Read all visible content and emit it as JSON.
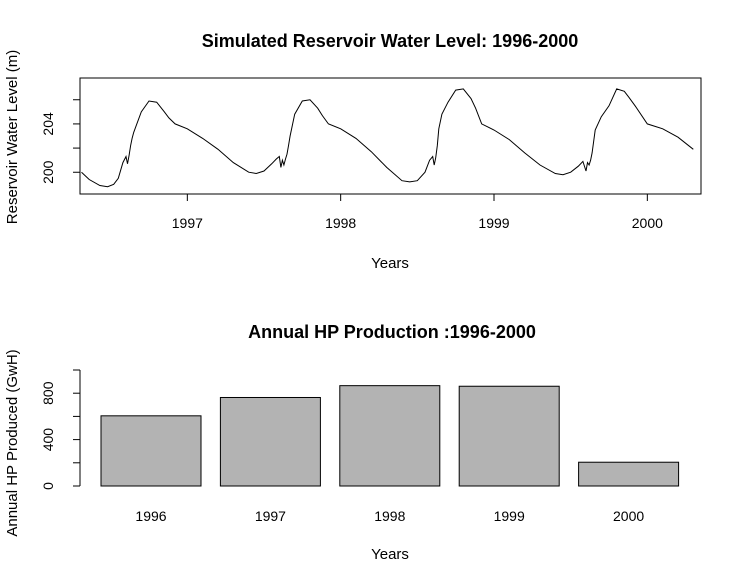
{
  "chart_data": [
    {
      "type": "line",
      "title": "Simulated Reservoir Water Level: 1996-2000",
      "xlabel": "Years",
      "ylabel": "Reservoir Water Level (m)",
      "xlim": [
        1996.3,
        2000.35
      ],
      "ylim": [
        198.2,
        207.8
      ],
      "x_ticks": [
        1997,
        1998,
        1999,
        2000
      ],
      "x_tick_labels": [
        "1997",
        "1998",
        "1999",
        "2000"
      ],
      "y_ticks": [
        200,
        202,
        204,
        206
      ],
      "y_tick_labels": [
        "200",
        "",
        "204",
        ""
      ],
      "series": [
        {
          "x": [
            1996.31,
            1996.36,
            1996.43,
            1996.48,
            1996.52,
            1996.55,
            1996.58,
            1996.6,
            1996.61,
            1996.62,
            1996.63,
            1996.64,
            1996.65,
            1996.7,
            1996.75,
            1996.8,
            1996.85,
            1996.88,
            1996.92,
            1997.0,
            1997.1,
            1997.2,
            1997.3,
            1997.4,
            1997.45,
            1997.5,
            1997.55,
            1997.58,
            1997.6,
            1997.61,
            1997.62,
            1997.63,
            1997.64,
            1997.65,
            1997.66,
            1997.67,
            1997.7,
            1997.75,
            1997.8,
            1997.85,
            1997.88,
            1997.92,
            1998.0,
            1998.1,
            1998.2,
            1998.3,
            1998.4,
            1998.45,
            1998.5,
            1998.55,
            1998.58,
            1998.6,
            1998.61,
            1998.62,
            1998.63,
            1998.64,
            1998.66,
            1998.7,
            1998.75,
            1998.8,
            1998.85,
            1998.88,
            1998.92,
            1999.0,
            1999.1,
            1999.2,
            1999.3,
            1999.4,
            1999.45,
            1999.5,
            1999.55,
            1999.58,
            1999.6,
            1999.61,
            1999.62,
            1999.63,
            1999.64,
            1999.66,
            1999.7,
            1999.75,
            1999.8,
            1999.85,
            1999.88,
            1999.92,
            2000.0,
            2000.1,
            2000.2,
            2000.3
          ],
          "y": [
            200.0,
            199.4,
            198.9,
            198.8,
            199.0,
            199.5,
            200.8,
            201.3,
            200.7,
            201.4,
            202.2,
            202.8,
            203.3,
            205.0,
            205.9,
            205.8,
            205.0,
            204.5,
            204.0,
            203.6,
            202.8,
            201.9,
            200.8,
            200.0,
            199.9,
            200.1,
            200.7,
            201.1,
            201.3,
            200.4,
            201.0,
            200.6,
            201.1,
            201.5,
            202.2,
            203.0,
            204.8,
            205.9,
            206.0,
            205.3,
            204.7,
            204.0,
            203.6,
            202.8,
            201.7,
            200.4,
            199.3,
            199.2,
            199.3,
            200.0,
            201.0,
            201.3,
            200.6,
            201.2,
            202.2,
            203.6,
            204.8,
            205.8,
            206.8,
            206.9,
            206.1,
            205.3,
            204.0,
            203.5,
            202.7,
            201.6,
            200.6,
            199.9,
            199.8,
            200.0,
            200.5,
            200.9,
            200.1,
            200.8,
            200.6,
            201.0,
            201.6,
            203.5,
            204.6,
            205.5,
            206.9,
            206.7,
            206.2,
            205.5,
            204.0,
            203.6,
            202.9,
            201.9
          ]
        }
      ]
    },
    {
      "type": "bar",
      "title": "Annual HP Production :1996-2000",
      "xlabel": "Years",
      "ylabel": "Annual HP Produced (GwH)",
      "categories": [
        "1996",
        "1997",
        "1998",
        "1999",
        "2000"
      ],
      "values": [
        605,
        763,
        865,
        860,
        205
      ],
      "ylim": [
        0,
        1000
      ],
      "y_ticks": [
        0,
        200,
        400,
        600,
        800,
        1000
      ],
      "y_tick_labels": [
        "0",
        "",
        "400",
        "",
        "800",
        ""
      ],
      "bar_color": "#b3b3b3"
    }
  ]
}
